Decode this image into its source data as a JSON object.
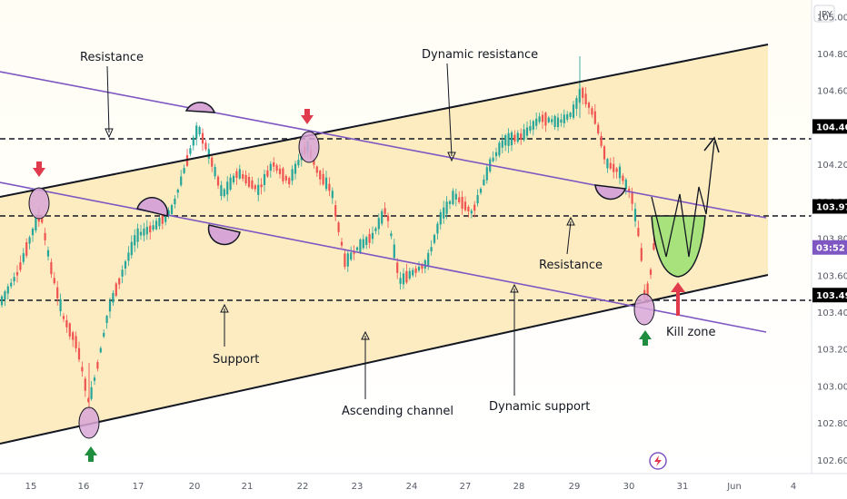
{
  "chart_data": {
    "type": "candlestick",
    "currency": "JPY",
    "y_axis": {
      "range": [
        102.55,
        105.07
      ],
      "ticks": [
        105.0,
        104.8,
        104.6,
        104.2,
        104.0,
        103.8,
        103.6,
        103.4,
        103.2,
        103.0,
        102.8,
        102.6
      ],
      "tick_labels": [
        "105.000",
        "104.800",
        "104.600",
        "104.200",
        "104.000",
        "103.800",
        "103.600",
        "103.400",
        "103.200",
        "103.000",
        "102.800",
        "102.600"
      ]
    },
    "x_axis": {
      "tick_labels": [
        "15",
        "16",
        "17",
        "20",
        "21",
        "22",
        "23",
        "24",
        "27",
        "28",
        "29",
        "30",
        "31",
        "Jun",
        "4"
      ]
    },
    "price_labels": [
      {
        "value": 104.405,
        "text": "104.405",
        "color": "#000000"
      },
      {
        "value": 103.972,
        "text": "103.972",
        "color": "#000000"
      },
      {
        "value": 103.75,
        "text": "03:52",
        "color": "#ffffff"
      },
      {
        "value": 103.492,
        "text": "103.492",
        "color": "#000000"
      }
    ],
    "horizontal_levels": [
      104.405,
      103.972,
      103.492
    ],
    "annotations": [
      {
        "id": "resistance-top",
        "text": "Resistance"
      },
      {
        "id": "dynamic-resistance",
        "text": "Dynamic resistance"
      },
      {
        "id": "resistance-right",
        "text": "Resistance"
      },
      {
        "id": "support",
        "text": "Support"
      },
      {
        "id": "ascending-channel",
        "text": "Ascending channel"
      },
      {
        "id": "dynamic-support",
        "text": "Dynamic support"
      },
      {
        "id": "kill-zone",
        "text": "Kill zone"
      }
    ],
    "colors": {
      "up": "#26a69a",
      "down": "#ef5350",
      "channel_fill": "#fde9b6",
      "channel_line": "#131722",
      "trend_line": "#7e57c2",
      "highlight_circle": "#d8a6d6",
      "arrow_red": "#e03a4c",
      "arrow_green": "#1e8e3e",
      "zone_green": "#a8e27d"
    }
  }
}
